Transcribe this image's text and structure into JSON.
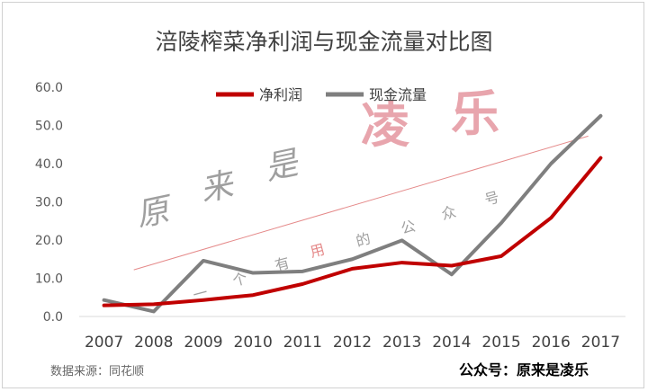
{
  "chart_data": {
    "type": "line",
    "title": "涪陵榨菜净利润与现金流量对比图",
    "categories": [
      "2007",
      "2008",
      "2009",
      "2010",
      "2011",
      "2012",
      "2013",
      "2014",
      "2015",
      "2016",
      "2017"
    ],
    "series": [
      {
        "name": "净利润",
        "color": "#c00000",
        "values": [
          2.9,
          3.2,
          4.3,
          5.6,
          8.5,
          12.5,
          14.1,
          13.3,
          15.8,
          25.8,
          41.5
        ]
      },
      {
        "name": "现金流量",
        "color": "#7f7f7f",
        "values": [
          4.3,
          1.3,
          14.6,
          11.4,
          11.8,
          15.0,
          19.9,
          11.0,
          24.5,
          40.0,
          52.5
        ]
      }
    ],
    "yticks": [
      "0.0",
      "10.0",
      "20.0",
      "30.0",
      "40.0",
      "50.0",
      "60.0"
    ],
    "ylim": [
      0,
      60
    ],
    "legend_position": "top",
    "grid": false
  },
  "watermark": {
    "text_large": "凌乐",
    "text_diagonal": [
      "原",
      "来",
      "是"
    ],
    "text_small": [
      "一",
      "个",
      "有",
      "用",
      "的",
      "公",
      "众",
      "号"
    ]
  },
  "footer": {
    "source": "数据来源：同花顺",
    "account": "公众号：原来是凌乐"
  }
}
